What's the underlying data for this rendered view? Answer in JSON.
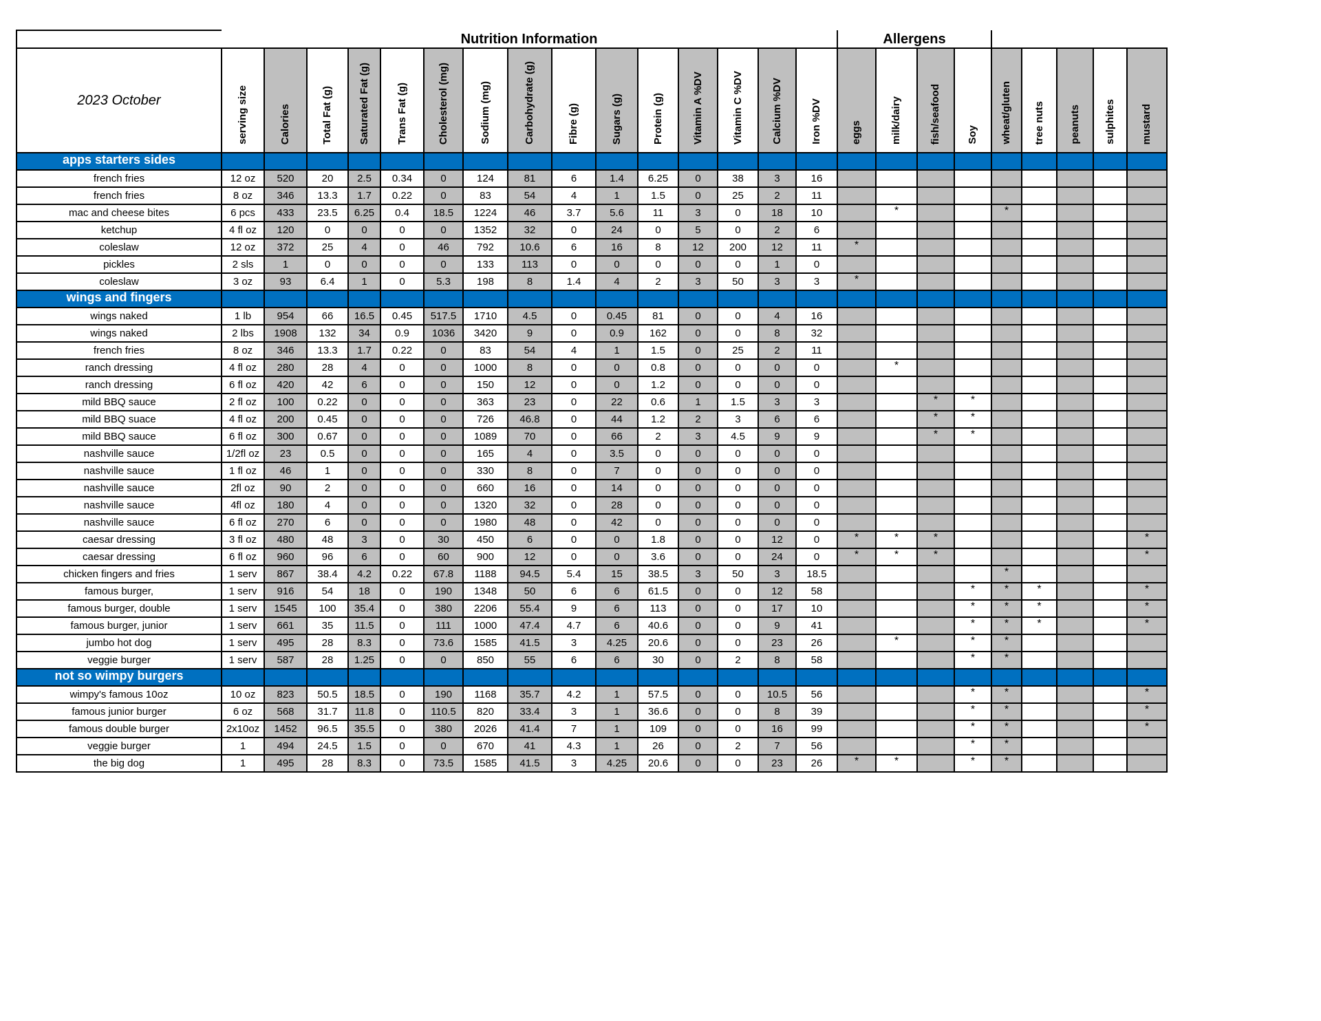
{
  "title": {
    "nutrition": "Nutrition Information",
    "allergens": "Allergens",
    "date": "2023 October"
  },
  "colors": {
    "section": "#0070C0",
    "shaded": "#BFBFBF"
  },
  "columns": [
    "serving size",
    "Calories",
    "Total Fat (g)",
    "Saturated Fat (g)",
    "Trans Fat (g)",
    "Cholesterol (mg)",
    "Sodium (mg)",
    "Carbohydrate (g)",
    "Fibre (g)",
    "Sugars (g)",
    "Protein (g)",
    "Vitamin A %DV",
    "Vitamin C %DV",
    "Calcium %DV",
    "Iron %DV"
  ],
  "allergen_columns": [
    "eggs",
    "milk/dairy",
    "fish/seafood",
    "Soy",
    "wheat/gluten",
    "tree nuts",
    "peanuts",
    "sulphites",
    "mustard"
  ],
  "sections": [
    {
      "name": "apps starters sides",
      "rows": [
        {
          "item": "french fries",
          "values": [
            "12 oz",
            "520",
            "20",
            "2.5",
            "0.34",
            "0",
            "124",
            "81",
            "6",
            "1.4",
            "6.25",
            "0",
            "38",
            "3",
            "16"
          ],
          "allergens": [
            "",
            "",
            "",
            "",
            "",
            "",
            "",
            "",
            ""
          ]
        },
        {
          "item": "french fries",
          "values": [
            "8 oz",
            "346",
            "13.3",
            "1.7",
            "0.22",
            "0",
            "83",
            "54",
            "4",
            "1",
            "1.5",
            "0",
            "25",
            "2",
            "11"
          ],
          "allergens": [
            "",
            "",
            "",
            "",
            "",
            "",
            "",
            "",
            ""
          ]
        },
        {
          "item": "mac and cheese bites",
          "values": [
            "6 pcs",
            "433",
            "23.5",
            "6.25",
            "0.4",
            "18.5",
            "1224",
            "46",
            "3.7",
            "5.6",
            "11",
            "3",
            "0",
            "18",
            "10"
          ],
          "allergens": [
            "",
            "*",
            "",
            "",
            "*",
            "",
            "",
            "",
            ""
          ]
        },
        {
          "item": "ketchup",
          "values": [
            "4 fl oz",
            "120",
            "0",
            "0",
            "0",
            "0",
            "1352",
            "32",
            "0",
            "24",
            "0",
            "5",
            "0",
            "2",
            "6"
          ],
          "allergens": [
            "",
            "",
            "",
            "",
            "",
            "",
            "",
            "",
            ""
          ]
        },
        {
          "item": "coleslaw",
          "values": [
            "12 oz",
            "372",
            "25",
            "4",
            "0",
            "46",
            "792",
            "10.6",
            "6",
            "16",
            "8",
            "12",
            "200",
            "12",
            "11"
          ],
          "allergens": [
            "*",
            "",
            "",
            "",
            "",
            "",
            "",
            "",
            ""
          ]
        },
        {
          "item": "pickles",
          "values": [
            "2 sls",
            "1",
            "0",
            "0",
            "0",
            "0",
            "133",
            "113",
            "0",
            "0",
            "0",
            "0",
            "0",
            "1",
            "0"
          ],
          "allergens": [
            "",
            "",
            "",
            "",
            "",
            "",
            "",
            "",
            ""
          ]
        },
        {
          "item": "coleslaw",
          "values": [
            "3 oz",
            "93",
            "6.4",
            "1",
            "0",
            "5.3",
            "198",
            "8",
            "1.4",
            "4",
            "2",
            "3",
            "50",
            "3",
            "3"
          ],
          "allergens": [
            "*",
            "",
            "",
            "",
            "",
            "",
            "",
            "",
            ""
          ]
        }
      ]
    },
    {
      "name": "wings and fingers",
      "rows": [
        {
          "item": "wings naked",
          "values": [
            "1 lb",
            "954",
            "66",
            "16.5",
            "0.45",
            "517.5",
            "1710",
            "4.5",
            "0",
            "0.45",
            "81",
            "0",
            "0",
            "4",
            "16"
          ],
          "allergens": [
            "",
            "",
            "",
            "",
            "",
            "",
            "",
            "",
            ""
          ]
        },
        {
          "item": "wings naked",
          "values": [
            "2 lbs",
            "1908",
            "132",
            "34",
            "0.9",
            "1036",
            "3420",
            "9",
            "0",
            "0.9",
            "162",
            "0",
            "0",
            "8",
            "32"
          ],
          "allergens": [
            "",
            "",
            "",
            "",
            "",
            "",
            "",
            "",
            ""
          ]
        },
        {
          "item": "french fries",
          "values": [
            "8 oz",
            "346",
            "13.3",
            "1.7",
            "0.22",
            "0",
            "83",
            "54",
            "4",
            "1",
            "1.5",
            "0",
            "25",
            "2",
            "11"
          ],
          "allergens": [
            "",
            "",
            "",
            "",
            "",
            "",
            "",
            "",
            ""
          ]
        },
        {
          "item": "ranch dressing",
          "values": [
            "4 fl oz",
            "280",
            "28",
            "4",
            "0",
            "0",
            "1000",
            "8",
            "0",
            "0",
            "0.8",
            "0",
            "0",
            "0",
            "0"
          ],
          "allergens": [
            "",
            "*",
            "",
            "",
            "",
            "",
            "",
            "",
            ""
          ]
        },
        {
          "item": "ranch dressing",
          "values": [
            "6 fl oz",
            "420",
            "42",
            "6",
            "0",
            "0",
            "150",
            "12",
            "0",
            "0",
            "1.2",
            "0",
            "0",
            "0",
            "0"
          ],
          "allergens": [
            "",
            "",
            "",
            "",
            "",
            "",
            "",
            "",
            ""
          ]
        },
        {
          "item": "mild BBQ sauce",
          "values": [
            "2 fl oz",
            "100",
            "0.22",
            "0",
            "0",
            "0",
            "363",
            "23",
            "0",
            "22",
            "0.6",
            "1",
            "1.5",
            "3",
            "3"
          ],
          "allergens": [
            "",
            "",
            "*",
            "*",
            "",
            "",
            "",
            "",
            ""
          ]
        },
        {
          "item": "mild BBQ suace",
          "values": [
            "4 fl oz",
            "200",
            "0.45",
            "0",
            "0",
            "0",
            "726",
            "46.8",
            "0",
            "44",
            "1.2",
            "2",
            "3",
            "6",
            "6"
          ],
          "allergens": [
            "",
            "",
            "*",
            "*",
            "",
            "",
            "",
            "",
            ""
          ]
        },
        {
          "item": "mild BBQ sauce",
          "values": [
            "6 fl oz",
            "300",
            "0.67",
            "0",
            "0",
            "0",
            "1089",
            "70",
            "0",
            "66",
            "2",
            "3",
            "4.5",
            "9",
            "9"
          ],
          "allergens": [
            "",
            "",
            "*",
            "*",
            "",
            "",
            "",
            "",
            ""
          ]
        },
        {
          "item": "nashville sauce",
          "values": [
            "1/2fl oz",
            "23",
            "0.5",
            "0",
            "0",
            "0",
            "165",
            "4",
            "0",
            "3.5",
            "0",
            "0",
            "0",
            "0",
            "0"
          ],
          "allergens": [
            "",
            "",
            "",
            "",
            "",
            "",
            "",
            "",
            ""
          ]
        },
        {
          "item": "nashville sauce",
          "values": [
            "1 fl oz",
            "46",
            "1",
            "0",
            "0",
            "0",
            "330",
            "8",
            "0",
            "7",
            "0",
            "0",
            "0",
            "0",
            "0"
          ],
          "allergens": [
            "",
            "",
            "",
            "",
            "",
            "",
            "",
            "",
            ""
          ]
        },
        {
          "item": "nashville sauce",
          "values": [
            "2fl oz",
            "90",
            "2",
            "0",
            "0",
            "0",
            "660",
            "16",
            "0",
            "14",
            "0",
            "0",
            "0",
            "0",
            "0"
          ],
          "allergens": [
            "",
            "",
            "",
            "",
            "",
            "",
            "",
            "",
            ""
          ]
        },
        {
          "item": "nashville sauce",
          "values": [
            "4fl oz",
            "180",
            "4",
            "0",
            "0",
            "0",
            "1320",
            "32",
            "0",
            "28",
            "0",
            "0",
            "0",
            "0",
            "0"
          ],
          "allergens": [
            "",
            "",
            "",
            "",
            "",
            "",
            "",
            "",
            ""
          ]
        },
        {
          "item": "nashville sauce",
          "values": [
            "6 fl oz",
            "270",
            "6",
            "0",
            "0",
            "0",
            "1980",
            "48",
            "0",
            "42",
            "0",
            "0",
            "0",
            "0",
            "0"
          ],
          "allergens": [
            "",
            "",
            "",
            "",
            "",
            "",
            "",
            "",
            ""
          ]
        },
        {
          "item": "caesar dressing",
          "values": [
            "3 fl oz",
            "480",
            "48",
            "3",
            "0",
            "30",
            "450",
            "6",
            "0",
            "0",
            "1.8",
            "0",
            "0",
            "12",
            "0"
          ],
          "allergens": [
            "*",
            "*",
            "*",
            "",
            "",
            "",
            "",
            "",
            "*"
          ]
        },
        {
          "item": "caesar dressing",
          "values": [
            "6 fl oz",
            "960",
            "96",
            "6",
            "0",
            "60",
            "900",
            "12",
            "0",
            "0",
            "3.6",
            "0",
            "0",
            "24",
            "0"
          ],
          "allergens": [
            "*",
            "*",
            "*",
            "",
            "",
            "",
            "",
            "",
            "*"
          ]
        },
        {
          "item": "chicken fingers and fries",
          "values": [
            "1 serv",
            "867",
            "38.4",
            "4.2",
            "0.22",
            "67.8",
            "1188",
            "94.5",
            "5.4",
            "15",
            "38.5",
            "3",
            "50",
            "3",
            "18.5"
          ],
          "allergens": [
            "",
            "",
            "",
            "",
            "*",
            "",
            "",
            "",
            ""
          ]
        },
        {
          "item": "famous burger,",
          "values": [
            "1 serv",
            "916",
            "54",
            "18",
            "0",
            "190",
            "1348",
            "50",
            "6",
            "6",
            "61.5",
            "0",
            "0",
            "12",
            "58"
          ],
          "allergens": [
            "",
            "",
            "",
            "*",
            "*",
            "*",
            "",
            "",
            "*"
          ]
        },
        {
          "item": "famous burger, double",
          "values": [
            "1 serv",
            "1545",
            "100",
            "35.4",
            "0",
            "380",
            "2206",
            "55.4",
            "9",
            "6",
            "113",
            "0",
            "0",
            "17",
            "10"
          ],
          "allergens": [
            "",
            "",
            "",
            "*",
            "*",
            "*",
            "",
            "",
            "*"
          ]
        },
        {
          "item": "famous burger, junior",
          "values": [
            "1 serv",
            "661",
            "35",
            "11.5",
            "0",
            "111",
            "1000",
            "47.4",
            "4.7",
            "6",
            "40.6",
            "0",
            "0",
            "9",
            "41"
          ],
          "allergens": [
            "",
            "",
            "",
            "*",
            "*",
            "*",
            "",
            "",
            "*"
          ]
        },
        {
          "item": "jumbo hot dog",
          "values": [
            "1 serv",
            "495",
            "28",
            "8.3",
            "0",
            "73.6",
            "1585",
            "41.5",
            "3",
            "4.25",
            "20.6",
            "0",
            "0",
            "23",
            "26"
          ],
          "allergens": [
            "",
            "*",
            "",
            "*",
            "*",
            "",
            "",
            "",
            ""
          ]
        },
        {
          "item": "veggie burger",
          "values": [
            "1 serv",
            "587",
            "28",
            "1.25",
            "0",
            "0",
            "850",
            "55",
            "6",
            "6",
            "30",
            "0",
            "2",
            "8",
            "58"
          ],
          "allergens": [
            "",
            "",
            "",
            "*",
            "*",
            "",
            "",
            "",
            ""
          ]
        }
      ]
    },
    {
      "name": "not so wimpy burgers",
      "rows": [
        {
          "item": "wimpy's famous 10oz",
          "values": [
            "10 oz",
            "823",
            "50.5",
            "18.5",
            "0",
            "190",
            "1168",
            "35.7",
            "4.2",
            "1",
            "57.5",
            "0",
            "0",
            "10.5",
            "56"
          ],
          "allergens": [
            "",
            "",
            "",
            "*",
            "*",
            "",
            "",
            "",
            "*"
          ]
        },
        {
          "item": "famous  junior burger",
          "values": [
            "6 oz",
            "568",
            "31.7",
            "11.8",
            "0",
            "110.5",
            "820",
            "33.4",
            "3",
            "1",
            "36.6",
            "0",
            "0",
            "8",
            "39"
          ],
          "allergens": [
            "",
            "",
            "",
            "*",
            "*",
            "",
            "",
            "",
            "*"
          ]
        },
        {
          "item": "famous double burger",
          "values": [
            "2x10oz",
            "1452",
            "96.5",
            "35.5",
            "0",
            "380",
            "2026",
            "41.4",
            "7",
            "1",
            "109",
            "0",
            "0",
            "16",
            "99"
          ],
          "allergens": [
            "",
            "",
            "",
            "*",
            "*",
            "",
            "",
            "",
            "*"
          ]
        },
        {
          "item": "veggie burger",
          "values": [
            "1",
            "494",
            "24.5",
            "1.5",
            "0",
            "0",
            "670",
            "41",
            "4.3",
            "1",
            "26",
            "0",
            "2",
            "7",
            "56"
          ],
          "allergens": [
            "",
            "",
            "",
            "*",
            "*",
            "",
            "",
            "",
            ""
          ]
        },
        {
          "item": "the big dog",
          "values": [
            "1",
            "495",
            "28",
            "8.3",
            "0",
            "73.5",
            "1585",
            "41.5",
            "3",
            "4.25",
            "20.6",
            "0",
            "0",
            "23",
            "26"
          ],
          "allergens": [
            "*",
            "*",
            "",
            "*",
            "*",
            "",
            "",
            "",
            ""
          ]
        }
      ]
    }
  ]
}
